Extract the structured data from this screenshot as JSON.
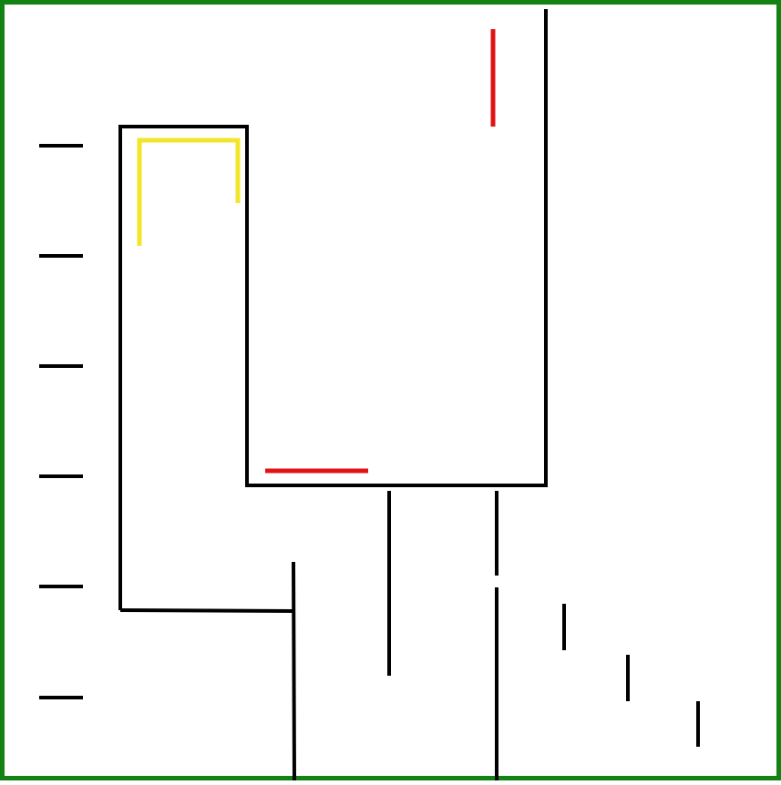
{
  "colors": {
    "border": "#128212",
    "background": "#ffffff",
    "wall": "#000000",
    "red_mark": "#e01414",
    "yellow_mark": "#f2e62c"
  }
}
